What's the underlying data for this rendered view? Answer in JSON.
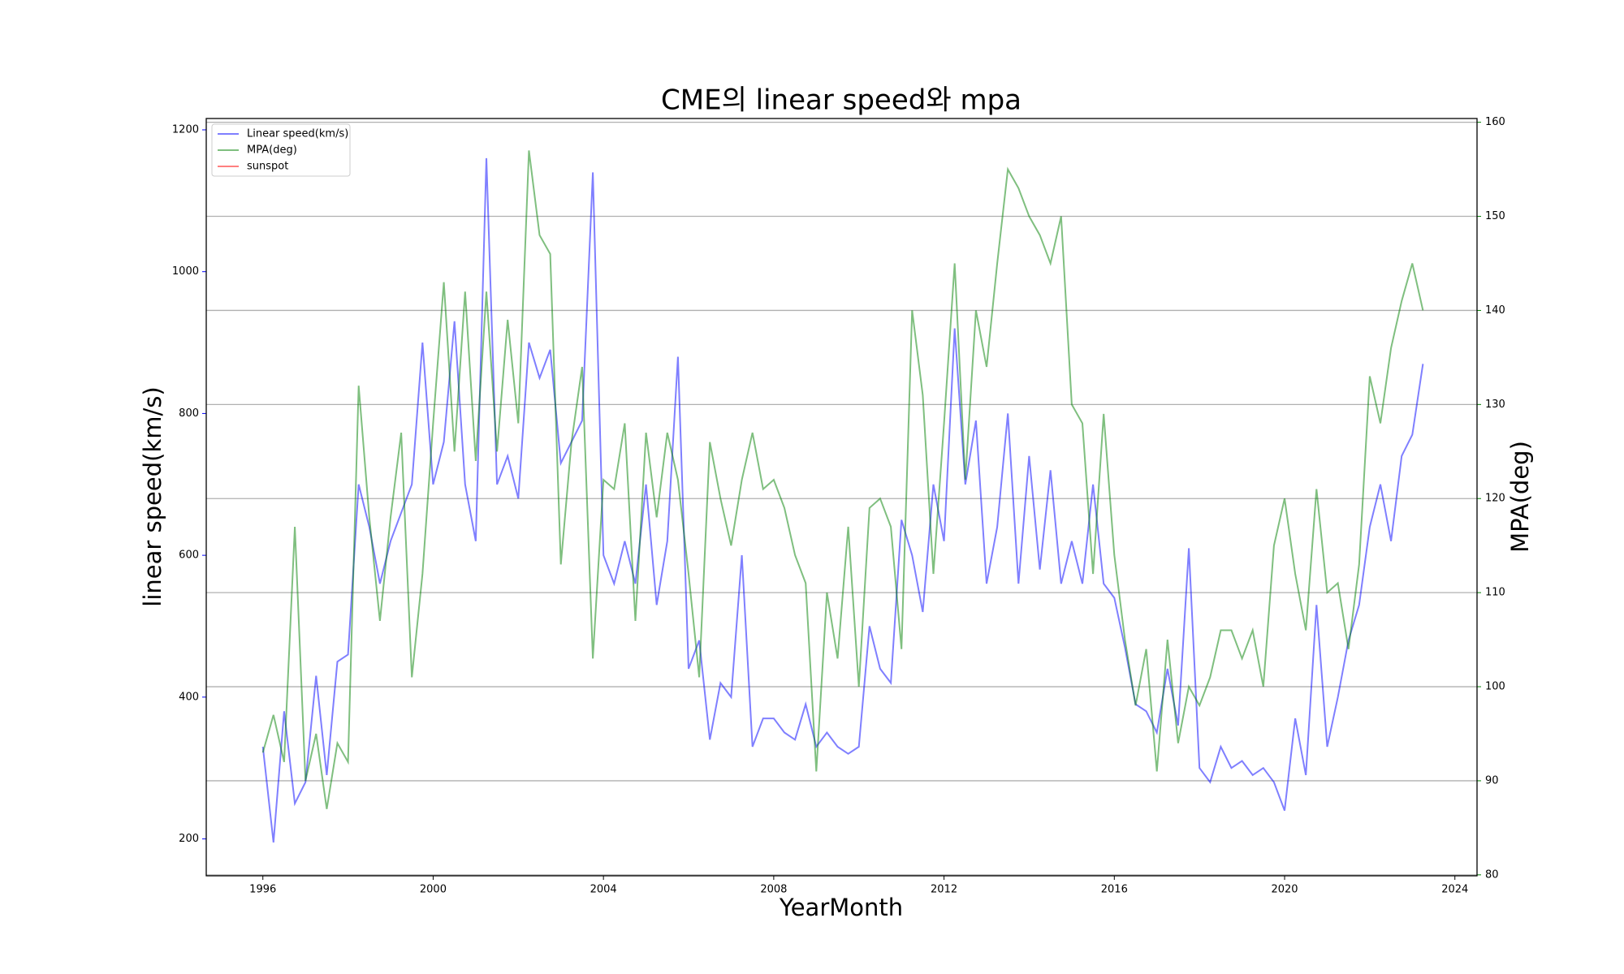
{
  "chart_data": {
    "type": "line",
    "title": "CME의 linear speed와 mpa",
    "x_label": "YearMonth",
    "y_label": "linear speed(km/s)",
    "y2_label": "MPA(deg)",
    "x": [
      1996.0,
      1996.25,
      1996.5,
      1996.75,
      1997.0,
      1997.25,
      1997.5,
      1997.75,
      1998.0,
      1998.25,
      1998.5,
      1998.75,
      1999.0,
      1999.25,
      1999.5,
      1999.75,
      2000.0,
      2000.25,
      2000.5,
      2000.75,
      2001.0,
      2001.25,
      2001.5,
      2001.75,
      2002.0,
      2002.25,
      2002.5,
      2002.75,
      2003.0,
      2003.25,
      2003.5,
      2003.75,
      2004.0,
      2004.25,
      2004.5,
      2004.75,
      2005.0,
      2005.25,
      2005.5,
      2005.75,
      2006.0,
      2006.25,
      2006.5,
      2006.75,
      2007.0,
      2007.25,
      2007.5,
      2007.75,
      2008.0,
      2008.25,
      2008.5,
      2008.75,
      2009.0,
      2009.25,
      2009.5,
      2009.75,
      2010.0,
      2010.25,
      2010.5,
      2010.75,
      2011.0,
      2011.25,
      2011.5,
      2011.75,
      2012.0,
      2012.25,
      2012.5,
      2012.75,
      2013.0,
      2013.25,
      2013.5,
      2013.75,
      2014.0,
      2014.25,
      2014.5,
      2014.75,
      2015.0,
      2015.25,
      2015.5,
      2015.75,
      2016.0,
      2016.25,
      2016.5,
      2016.75,
      2017.0,
      2017.25,
      2017.5,
      2017.75,
      2018.0,
      2018.25,
      2018.5,
      2018.75,
      2019.0,
      2019.25,
      2019.5,
      2019.75,
      2020.0,
      2020.25,
      2020.5,
      2020.75,
      2021.0,
      2021.25,
      2021.5,
      2021.75,
      2022.0,
      2022.25,
      2022.5,
      2022.75,
      2023.0,
      2023.25
    ],
    "series": [
      {
        "name": "Linear speed(km/s)",
        "color": "#0000ff",
        "alpha": 0.5,
        "axis": "y",
        "values": [
          330,
          195,
          380,
          250,
          280,
          430,
          290,
          450,
          460,
          700,
          640,
          560,
          620,
          660,
          700,
          900,
          700,
          760,
          930,
          700,
          620,
          1160,
          700,
          740,
          680,
          900,
          850,
          890,
          730,
          760,
          790,
          1140,
          600,
          560,
          620,
          560,
          700,
          530,
          620,
          880,
          440,
          480,
          340,
          420,
          400,
          600,
          330,
          370,
          370,
          350,
          340,
          390,
          330,
          350,
          330,
          320,
          330,
          500,
          440,
          420,
          650,
          600,
          520,
          700,
          620,
          920,
          700,
          790,
          560,
          640,
          800,
          560,
          740,
          580,
          720,
          560,
          620,
          560,
          700,
          560,
          540,
          470,
          390,
          380,
          350,
          440,
          360,
          610,
          300,
          280,
          330,
          300,
          310,
          290,
          300,
          280,
          240,
          370,
          290,
          530,
          330,
          400,
          480,
          530,
          640,
          700,
          620,
          740,
          770,
          870
        ]
      },
      {
        "name": "MPA(deg)",
        "color": "#008000",
        "alpha": 0.5,
        "axis": "y2",
        "values": [
          93,
          97,
          92,
          117,
          90,
          95,
          87,
          94,
          92,
          132,
          118,
          107,
          118,
          127,
          101,
          112,
          128,
          143,
          125,
          142,
          124,
          142,
          125,
          139,
          128,
          157,
          148,
          146,
          113,
          126,
          134,
          103,
          122,
          121,
          128,
          107,
          127,
          118,
          127,
          122,
          112,
          101,
          126,
          120,
          115,
          122,
          127,
          121,
          122,
          119,
          114,
          111,
          91,
          110,
          103,
          117,
          100,
          119,
          120,
          117,
          104,
          140,
          131,
          112,
          128,
          145,
          122,
          140,
          134,
          145,
          155,
          153,
          150,
          148,
          145,
          150,
          130,
          128,
          112,
          129,
          114,
          105,
          98,
          104,
          91,
          105,
          94,
          100,
          98,
          101,
          106,
          106,
          103,
          106,
          100,
          115,
          120,
          112,
          106,
          121,
          110,
          111,
          104,
          113,
          133,
          128,
          136,
          141,
          145,
          140
        ]
      },
      {
        "name": "sunspot",
        "color": "#ff0000",
        "alpha": 0.5,
        "axis": "y"
      }
    ],
    "xlim": [
      1994.67,
      2024.52
    ],
    "xticks": [
      1996,
      2000,
      2004,
      2008,
      2012,
      2016,
      2020,
      2024
    ],
    "ylim": [
      148,
      1216
    ],
    "yticks": [
      200,
      400,
      600,
      800,
      1000,
      1200
    ],
    "y2lim": [
      79.9,
      160.4
    ],
    "y2ticks": [
      80,
      90,
      100,
      110,
      120,
      130,
      140,
      150,
      160
    ],
    "y_label_color": "#0000ff",
    "y2_label_color": "#008000",
    "grid": "y2",
    "legend": "upper left"
  }
}
